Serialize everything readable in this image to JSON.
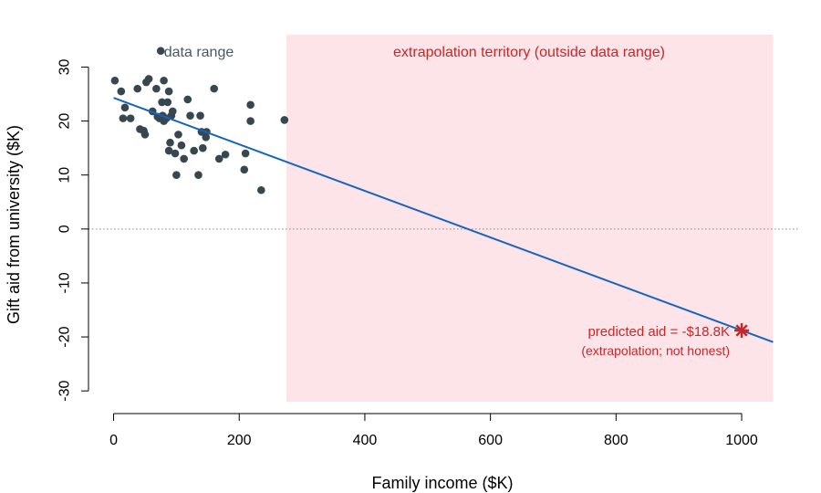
{
  "chart_data": {
    "type": "scatter",
    "title": "",
    "xlabel": "Family income ($K)",
    "ylabel": "Gift aid from university ($K)",
    "xlim": [
      -40,
      1090
    ],
    "ylim": [
      -32,
      36
    ],
    "xticks": [
      0,
      200,
      400,
      600,
      800,
      1000
    ],
    "yticks": [
      -30,
      -20,
      -10,
      0,
      10,
      20,
      30
    ],
    "grid": false,
    "reference_line_y": 0,
    "series": [
      {
        "kind": "points",
        "color": "#37474f",
        "points": [
          [
            2,
            27.5
          ],
          [
            12,
            25.5
          ],
          [
            15,
            20.5
          ],
          [
            18,
            22.5
          ],
          [
            27,
            20.5
          ],
          [
            38,
            26
          ],
          [
            42,
            18.5
          ],
          [
            48,
            18.2
          ],
          [
            50,
            17.5
          ],
          [
            52,
            27.2
          ],
          [
            56,
            27.8
          ],
          [
            62,
            21.8
          ],
          [
            68,
            26
          ],
          [
            70,
            20.8
          ],
          [
            73,
            20.5
          ],
          [
            75,
            33
          ],
          [
            77,
            23.5
          ],
          [
            78,
            21
          ],
          [
            80,
            27.5
          ],
          [
            80,
            20
          ],
          [
            84,
            20.5
          ],
          [
            86,
            23.5
          ],
          [
            88,
            14.5
          ],
          [
            88,
            25.5
          ],
          [
            90,
            16
          ],
          [
            92,
            21
          ],
          [
            94,
            21.8
          ],
          [
            98,
            14
          ],
          [
            100,
            10
          ],
          [
            103,
            17.5
          ],
          [
            108,
            15.5
          ],
          [
            112,
            13
          ],
          [
            118,
            24
          ],
          [
            122,
            21
          ],
          [
            128,
            14.5
          ],
          [
            135,
            10
          ],
          [
            138,
            21
          ],
          [
            140,
            18
          ],
          [
            142,
            15
          ],
          [
            147,
            17
          ],
          [
            148,
            18
          ],
          [
            160,
            26
          ],
          [
            168,
            13
          ],
          [
            178,
            13.8
          ],
          [
            208,
            11
          ],
          [
            210,
            14
          ],
          [
            218,
            23
          ],
          [
            218,
            20
          ],
          [
            235,
            7.2
          ],
          [
            272,
            20.2
          ]
        ]
      },
      {
        "kind": "regression_line",
        "color": "#1565c0",
        "intercept": 24.3,
        "slope": -0.0431,
        "x_range": [
          0,
          1050
        ]
      }
    ],
    "regions": [
      {
        "label": "extrapolation territory (outside data range)",
        "x_range": [
          275,
          1050
        ],
        "color": "#fde4e8"
      }
    ],
    "annotations": [
      {
        "text": "data range",
        "color": "#455a64"
      },
      {
        "text": "extrapolation territory (outside data range)",
        "color": "#c62828"
      },
      {
        "text": "predicted aid = -$18.8K",
        "color": "#c62828"
      },
      {
        "text": "(extrapolation; not honest)",
        "color": "#c62828"
      }
    ],
    "highlight_point": {
      "x": 1000,
      "y": -18.8,
      "color": "#c62828"
    }
  }
}
